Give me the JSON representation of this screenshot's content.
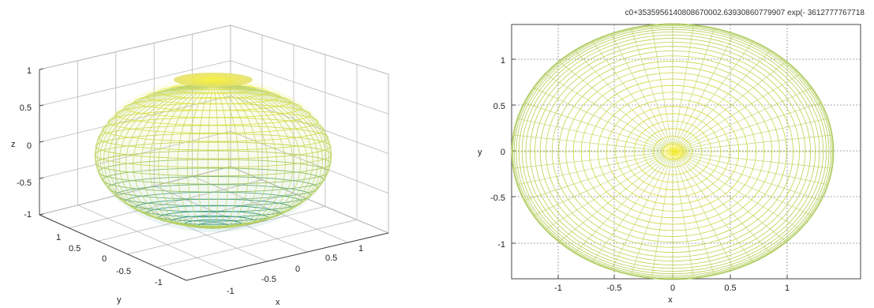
{
  "colors": {
    "top": "#f2ec3a",
    "mid": "#c9d85a",
    "bottom": "#1f8e8e",
    "grid": "#b9b9b9",
    "axis": "#444444"
  },
  "left": {
    "z_ticks": [
      "1",
      "0.5",
      "0",
      "-0.5",
      "-1"
    ],
    "x_ticks": [
      "-1",
      "-0.5",
      "0",
      "0.5",
      "1"
    ],
    "y_ticks": [
      "1",
      "0.5",
      "0",
      "-0.5",
      "-1"
    ],
    "xlabel": "x",
    "ylabel": "y",
    "zlabel": "z"
  },
  "right": {
    "title": "c0+3535956140808670002.63930860779907 exp(- 3612777767718",
    "x_ticks": [
      "-1",
      "-0.5",
      "0",
      "0.5",
      "1"
    ],
    "y_ticks": [
      "1",
      "0.5",
      "0",
      "-0.5",
      "-1"
    ],
    "xlabel": "x",
    "ylabel": "y"
  }
}
